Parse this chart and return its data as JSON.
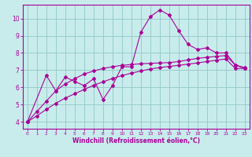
{
  "xlabel": "Windchill (Refroidissement éolien,°C)",
  "bg_color": "#c8ecec",
  "grid_color": "#99cccc",
  "line_color": "#aa0099",
  "xlim": [
    -0.5,
    23.5
  ],
  "ylim": [
    3.6,
    10.8
  ],
  "xticks": [
    0,
    1,
    2,
    3,
    4,
    5,
    6,
    7,
    8,
    9,
    10,
    11,
    12,
    13,
    14,
    15,
    16,
    17,
    18,
    19,
    20,
    21,
    22,
    23
  ],
  "yticks": [
    4,
    5,
    6,
    7,
    8,
    9,
    10
  ],
  "line1_x": [
    0,
    1,
    2,
    3,
    4,
    5,
    6,
    7,
    8,
    9,
    10,
    11,
    12,
    13,
    14,
    15,
    16,
    17,
    18,
    19,
    20,
    21,
    22,
    23
  ],
  "line1_y": [
    4.0,
    4.35,
    4.72,
    5.08,
    5.38,
    5.63,
    5.88,
    6.12,
    6.32,
    6.52,
    6.68,
    6.83,
    6.95,
    7.07,
    7.15,
    7.22,
    7.28,
    7.35,
    7.42,
    7.5,
    7.58,
    7.65,
    7.1,
    7.1
  ],
  "line2_x": [
    0,
    1,
    2,
    3,
    4,
    5,
    6,
    7,
    8,
    9,
    10,
    11,
    12,
    13,
    14,
    15,
    16,
    17,
    18,
    19,
    20,
    21,
    22,
    23
  ],
  "line2_y": [
    4.0,
    4.6,
    5.2,
    5.8,
    6.2,
    6.5,
    6.78,
    6.95,
    7.1,
    7.2,
    7.28,
    7.33,
    7.37,
    7.4,
    7.42,
    7.44,
    7.5,
    7.6,
    7.68,
    7.75,
    7.8,
    7.85,
    7.3,
    7.1
  ],
  "line3_x": [
    0,
    2,
    3,
    4,
    5,
    6,
    7,
    8,
    9,
    10,
    11,
    12,
    13,
    14,
    15,
    16,
    17,
    18,
    19,
    20,
    21,
    22,
    23
  ],
  "line3_y": [
    4.0,
    6.7,
    5.8,
    6.6,
    6.35,
    6.1,
    6.5,
    5.3,
    6.1,
    7.2,
    7.2,
    9.2,
    10.1,
    10.5,
    10.2,
    9.3,
    8.5,
    8.2,
    8.3,
    8.0,
    8.0,
    7.3,
    7.15
  ]
}
